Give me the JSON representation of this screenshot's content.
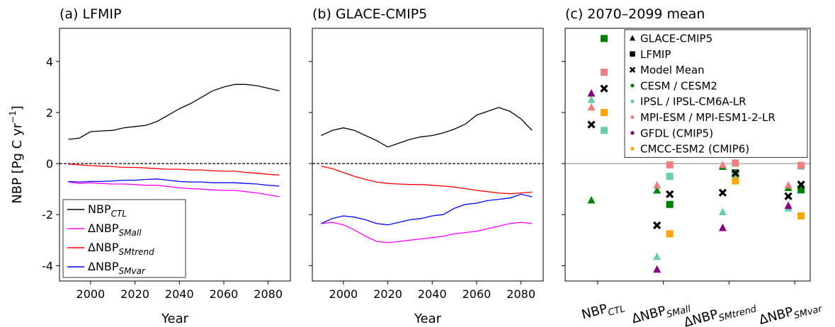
{
  "chart_data": [
    {
      "type": "line",
      "title": "(a) LFMIP",
      "xlabel": "Year",
      "ylabel": "NBP [Pg C yr",
      "ylabel_sup": "−1",
      "ylabel_end": "]",
      "xlim": [
        1986,
        2090
      ],
      "xticks": [
        2000,
        2020,
        2040,
        2060,
        2080
      ],
      "ylim": [
        -4.6,
        5.3
      ],
      "yticks": [
        -4,
        -2,
        0,
        2,
        4
      ],
      "ytick_labels": true,
      "hline": {
        "value": 0,
        "style": "dashed",
        "color": "#000000"
      },
      "legend_loc": "lower left",
      "x": [
        1990,
        1995,
        2000,
        2005,
        2010,
        2015,
        2020,
        2025,
        2030,
        2035,
        2040,
        2045,
        2050,
        2055,
        2060,
        2065,
        2070,
        2075,
        2080,
        2085
      ],
      "series": [
        {
          "name": "NBP",
          "name_sub": "CTL",
          "color": "#000000",
          "values": [
            0.95,
            1.0,
            1.25,
            1.28,
            1.3,
            1.4,
            1.45,
            1.5,
            1.65,
            1.9,
            2.15,
            2.35,
            2.6,
            2.85,
            3.0,
            3.1,
            3.1,
            3.05,
            2.95,
            2.85
          ]
        },
        {
          "name": "ΔNBP",
          "name_sub": "SMall",
          "color": "#ff00ff",
          "values": [
            -0.72,
            -0.78,
            -0.75,
            -0.78,
            -0.8,
            -0.8,
            -0.82,
            -0.85,
            -0.85,
            -0.9,
            -0.95,
            -0.98,
            -1.0,
            -1.03,
            -1.05,
            -1.05,
            -1.1,
            -1.15,
            -1.22,
            -1.3
          ]
        },
        {
          "name": "ΔNBP",
          "name_sub": "SMtrend",
          "color": "#ff0000",
          "values": [
            -0.02,
            -0.05,
            -0.08,
            -0.1,
            -0.12,
            -0.15,
            -0.15,
            -0.17,
            -0.2,
            -0.22,
            -0.22,
            -0.25,
            -0.25,
            -0.28,
            -0.3,
            -0.3,
            -0.35,
            -0.38,
            -0.42,
            -0.45
          ]
        },
        {
          "name": "ΔNBP",
          "name_sub": "SMvar",
          "color": "#0000ff",
          "values": [
            -0.7,
            -0.72,
            -0.7,
            -0.7,
            -0.68,
            -0.65,
            -0.65,
            -0.62,
            -0.6,
            -0.65,
            -0.7,
            -0.72,
            -0.72,
            -0.75,
            -0.75,
            -0.75,
            -0.78,
            -0.8,
            -0.85,
            -0.88
          ]
        }
      ]
    },
    {
      "type": "line",
      "title": "(b) GLACE-CMIP5",
      "xlabel": "Year",
      "xlim": [
        1986,
        2090
      ],
      "xticks": [
        2000,
        2020,
        2040,
        2060,
        2080
      ],
      "ylim": [
        -4.6,
        5.3
      ],
      "yticks": [
        -4,
        -2,
        0,
        2,
        4
      ],
      "ytick_labels": false,
      "hline": {
        "value": 0,
        "style": "dashed",
        "color": "#000000"
      },
      "x": [
        1990,
        1995,
        2000,
        2005,
        2010,
        2015,
        2020,
        2025,
        2030,
        2035,
        2040,
        2045,
        2050,
        2055,
        2060,
        2065,
        2070,
        2075,
        2080,
        2085
      ],
      "series": [
        {
          "color": "#000000",
          "values": [
            1.1,
            1.3,
            1.4,
            1.3,
            1.1,
            0.9,
            0.65,
            0.8,
            0.95,
            1.05,
            1.1,
            1.2,
            1.35,
            1.55,
            1.9,
            2.05,
            2.2,
            2.05,
            1.75,
            1.3
          ]
        },
        {
          "color": "#ff00ff",
          "values": [
            -2.35,
            -2.3,
            -2.4,
            -2.6,
            -2.85,
            -3.05,
            -3.1,
            -3.05,
            -3.0,
            -2.95,
            -2.9,
            -2.85,
            -2.75,
            -2.7,
            -2.65,
            -2.55,
            -2.45,
            -2.35,
            -2.3,
            -2.35
          ]
        },
        {
          "color": "#ff0000",
          "values": [
            -0.1,
            -0.2,
            -0.35,
            -0.5,
            -0.62,
            -0.72,
            -0.78,
            -0.8,
            -0.82,
            -0.82,
            -0.85,
            -0.88,
            -0.92,
            -0.98,
            -1.05,
            -1.1,
            -1.15,
            -1.18,
            -1.15,
            -1.12
          ]
        },
        {
          "color": "#0000ff",
          "values": [
            -2.35,
            -2.15,
            -2.05,
            -2.1,
            -2.2,
            -2.35,
            -2.4,
            -2.3,
            -2.2,
            -2.15,
            -2.05,
            -2.0,
            -1.75,
            -1.6,
            -1.55,
            -1.45,
            -1.4,
            -1.35,
            -1.2,
            -1.3
          ]
        }
      ]
    },
    {
      "type": "scatter",
      "title": "(c) 2070–2099 mean",
      "ylim": [
        -4.6,
        5.3
      ],
      "yticks": [
        -4,
        -2,
        0,
        2,
        4
      ],
      "ytick_labels": false,
      "hline": {
        "value": 0,
        "style": "solid",
        "color": "#808080"
      },
      "legend_loc": "upper right",
      "categories": [
        "NBP",
        "ΔNBP",
        "ΔNBP",
        "ΔNBP"
      ],
      "category_subs": [
        "CTL",
        "SMall",
        "SMtrend",
        "SMvar"
      ],
      "mean_label": "Model Mean",
      "models": [
        {
          "name": "CESM / CESM2",
          "color": "#008000"
        },
        {
          "name": "IPSL / IPSL-CM6A-LR",
          "color": "#66cdaa"
        },
        {
          "name": "MPI-ESM / MPI-ESM1-2-LR",
          "color": "#f08080"
        },
        {
          "name": "GFDL (CMIP5)",
          "color": "#800080"
        },
        {
          "name": "CMCC-ESM2 (CMIP6)",
          "color": "#ffa500"
        }
      ],
      "experiments": [
        {
          "name": "GLACE-CMIP5",
          "marker": "triangle",
          "values": [
            [
              -1.44,
              -1.05,
              -0.12,
              -0.95
            ],
            [
              2.5,
              -3.65,
              -1.9,
              -1.75
            ],
            [
              2.2,
              -0.85,
              -0.05,
              -0.85
            ],
            [
              2.75,
              -4.15,
              -2.52,
              -1.65
            ],
            [
              null,
              null,
              null,
              null
            ]
          ],
          "mean": [
            1.53,
            -2.42,
            -1.14,
            -1.28
          ]
        },
        {
          "name": "LFMIP",
          "marker": "square",
          "values": [
            [
              4.9,
              -1.6,
              -0.36,
              -1.03
            ],
            [
              1.3,
              -0.5,
              -0.5,
              -0.1
            ],
            [
              3.58,
              -0.05,
              0.02,
              -0.07
            ],
            [
              null,
              null,
              null,
              null
            ],
            [
              2.0,
              -2.75,
              -0.68,
              -2.05
            ]
          ],
          "mean": [
            2.94,
            -1.2,
            -0.38,
            -0.82
          ]
        }
      ]
    }
  ]
}
